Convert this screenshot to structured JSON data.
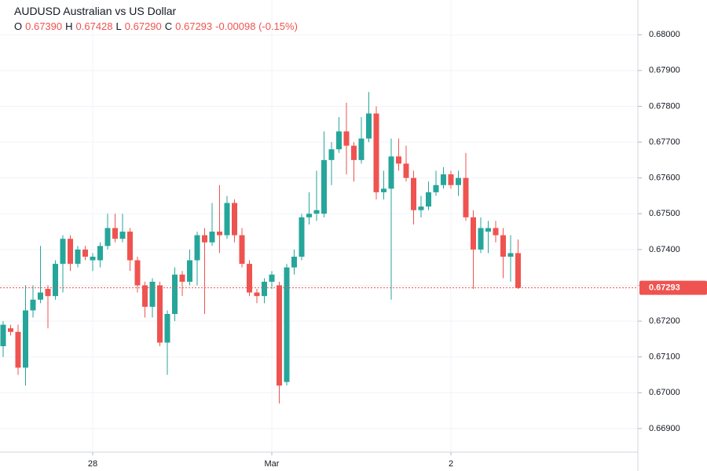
{
  "chart_data": {
    "type": "candlestick",
    "title": "AUDUSD Australian vs US Dollar",
    "ohlc_header": [
      {
        "key": "O",
        "value": "0.67390"
      },
      {
        "key": "H",
        "value": "0.67428"
      },
      {
        "key": "L",
        "value": "0.67290"
      },
      {
        "key": "C",
        "value": "0.67293"
      }
    ],
    "change": "-0.00098 (-0.15%)",
    "categories": [
      null,
      null,
      null,
      null,
      null,
      null,
      null,
      null,
      null,
      null,
      null,
      null,
      "28",
      null,
      null,
      null,
      null,
      null,
      null,
      null,
      null,
      null,
      null,
      null,
      null,
      null,
      null,
      null,
      null,
      null,
      null,
      null,
      null,
      null,
      null,
      null,
      "Mar",
      null,
      null,
      null,
      null,
      null,
      null,
      null,
      null,
      null,
      null,
      null,
      null,
      null,
      null,
      null,
      null,
      null,
      null,
      null,
      null,
      null,
      null,
      null,
      "2",
      null,
      null,
      null,
      null,
      null,
      null,
      null,
      null,
      null
    ],
    "open": [
      0.6713,
      0.6718,
      0.6717,
      0.6707,
      0.6723,
      0.6726,
      0.6729,
      0.6727,
      0.6736,
      0.6743,
      0.6736,
      0.674,
      0.6737,
      0.6737,
      0.6741,
      0.6746,
      0.6743,
      0.6745,
      0.6737,
      0.673,
      0.6724,
      0.673,
      0.6714,
      0.6722,
      0.6733,
      0.6731,
      0.6737,
      0.6744,
      0.6742,
      0.6745,
      0.6744,
      0.6753,
      0.6744,
      0.6736,
      0.6728,
      0.6727,
      0.6731,
      0.673,
      0.6703,
      0.6735,
      0.6738,
      0.6749,
      0.675,
      0.675,
      0.6765,
      0.6768,
      0.6773,
      0.6769,
      0.6765,
      0.6771,
      0.6778,
      0.6756,
      0.6757,
      0.6766,
      0.6764,
      0.676,
      0.6751,
      0.6752,
      0.6756,
      0.6758,
      0.6761,
      0.6758,
      0.676,
      0.6749,
      0.674,
      0.6745,
      0.6746,
      0.6744,
      0.6738,
      0.6739
    ],
    "high": [
      0.672,
      0.6719,
      0.6719,
      0.673,
      0.673,
      0.6741,
      0.673,
      0.6737,
      0.6744,
      0.6744,
      0.6741,
      0.6741,
      0.6739,
      0.6742,
      0.675,
      0.675,
      0.675,
      0.6746,
      0.6738,
      0.6731,
      0.6732,
      0.6731,
      0.6723,
      0.6735,
      0.6734,
      0.674,
      0.6745,
      0.6746,
      0.6753,
      0.6758,
      0.6755,
      0.6754,
      0.6746,
      0.6737,
      0.6729,
      0.6732,
      0.6734,
      0.6731,
      0.6736,
      0.674,
      0.675,
      0.6756,
      0.6762,
      0.6773,
      0.677,
      0.6777,
      0.6781,
      0.677,
      0.6777,
      0.6784,
      0.678,
      0.6762,
      0.6771,
      0.6771,
      0.6769,
      0.6762,
      0.6755,
      0.6759,
      0.6762,
      0.6763,
      0.6762,
      0.6762,
      0.6767,
      0.6751,
      0.6749,
      0.6748,
      0.6748,
      0.6746,
      0.6744,
      0.67428
    ],
    "low": [
      0.671,
      0.6716,
      0.6705,
      0.6702,
      0.6721,
      0.6725,
      0.6718,
      0.6726,
      0.6728,
      0.6734,
      0.6735,
      0.6737,
      0.6734,
      0.6735,
      0.674,
      0.6742,
      0.6742,
      0.6734,
      0.6728,
      0.6721,
      0.6721,
      0.6713,
      0.6705,
      0.672,
      0.6727,
      0.673,
      0.673,
      0.6722,
      0.6741,
      0.6739,
      0.6743,
      0.6742,
      0.6735,
      0.6727,
      0.6725,
      0.6725,
      0.6729,
      0.6697,
      0.6702,
      0.6733,
      0.6737,
      0.6747,
      0.6748,
      0.6749,
      0.6758,
      0.6767,
      0.6761,
      0.6759,
      0.6764,
      0.677,
      0.6754,
      0.6754,
      0.6726,
      0.6762,
      0.6759,
      0.6747,
      0.6749,
      0.6751,
      0.6755,
      0.6757,
      0.6757,
      0.6755,
      0.6748,
      0.6729,
      0.6739,
      0.6739,
      0.6742,
      0.6732,
      0.6731,
      0.6729
    ],
    "close": [
      0.6719,
      0.6717,
      0.6707,
      0.6723,
      0.6726,
      0.6728,
      0.6727,
      0.6736,
      0.6743,
      0.6736,
      0.674,
      0.6738,
      0.6738,
      0.6741,
      0.6746,
      0.6743,
      0.6745,
      0.6737,
      0.673,
      0.6724,
      0.6731,
      0.6714,
      0.6722,
      0.6733,
      0.6731,
      0.6737,
      0.6744,
      0.6742,
      0.6745,
      0.6744,
      0.6753,
      0.6744,
      0.6736,
      0.6728,
      0.6727,
      0.6731,
      0.6733,
      0.6702,
      0.6735,
      0.6738,
      0.6749,
      0.675,
      0.6751,
      0.6765,
      0.6768,
      0.6773,
      0.6769,
      0.6765,
      0.6771,
      0.6778,
      0.6756,
      0.6757,
      0.6766,
      0.6764,
      0.676,
      0.6751,
      0.6752,
      0.6756,
      0.6758,
      0.6761,
      0.6758,
      0.676,
      0.6749,
      0.674,
      0.6746,
      0.6746,
      0.6744,
      0.6738,
      0.6739,
      0.67293
    ],
    "up_color": "#26a69a",
    "down_color": "#ef5350",
    "last_price": {
      "value": 0.67293,
      "label": "0.67293"
    },
    "ylim": [
      0.66834,
      0.68097
    ],
    "yticks": [
      {
        "value": 0.669,
        "label": "0.66900"
      },
      {
        "value": 0.67,
        "label": "0.67000"
      },
      {
        "value": 0.671,
        "label": "0.67100"
      },
      {
        "value": 0.672,
        "label": "0.67200"
      },
      {
        "value": 0.673,
        "label": "0.67300"
      },
      {
        "value": 0.674,
        "label": "0.67400"
      },
      {
        "value": 0.675,
        "label": "0.67500"
      },
      {
        "value": 0.676,
        "label": "0.67600"
      },
      {
        "value": 0.677,
        "label": "0.67700"
      },
      {
        "value": 0.678,
        "label": "0.67800"
      },
      {
        "value": 0.679,
        "label": "0.67900"
      },
      {
        "value": 0.68,
        "label": "0.68000"
      }
    ],
    "grid": true
  }
}
